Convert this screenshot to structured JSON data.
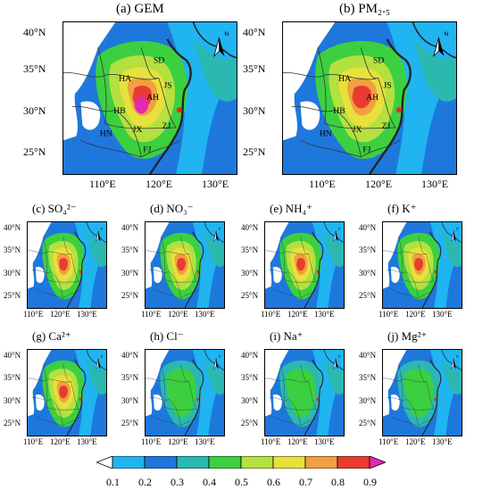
{
  "panels": [
    {
      "id": "a",
      "title": "(a) GEM",
      "size": "large"
    },
    {
      "id": "b",
      "title": "(b) PM₂.₅",
      "size": "large"
    },
    {
      "id": "c",
      "title": "(c) SO₄²⁻",
      "size": "small"
    },
    {
      "id": "d",
      "title": "(d) NO₃⁻",
      "size": "small"
    },
    {
      "id": "e",
      "title": "(e) NH₄⁺",
      "size": "small"
    },
    {
      "id": "f",
      "title": "(f) K⁺",
      "size": "small"
    },
    {
      "id": "g",
      "title": "(g) Ca²⁺",
      "size": "small"
    },
    {
      "id": "h",
      "title": "(h) Cl⁻",
      "size": "small"
    },
    {
      "id": "i",
      "title": "(i) Na⁺",
      "size": "small"
    },
    {
      "id": "j",
      "title": "(j) Mg²⁺",
      "size": "small"
    }
  ],
  "latitude_labels": [
    "40°N",
    "35°N",
    "30°N",
    "25°N"
  ],
  "longitude_labels": [
    "110°E",
    "120°E",
    "130°E"
  ],
  "province_labels": [
    "SD",
    "HA",
    "JS",
    "AH",
    "HB",
    "ZJ",
    "HN",
    "JX",
    "FJ"
  ],
  "north_arrow_label": "N",
  "colorbar": {
    "ticks": [
      "0.1",
      "0.2",
      "0.3",
      "0.4",
      "0.5",
      "0.6",
      "0.7",
      "0.8",
      "0.9"
    ],
    "colors": [
      "#ffffff",
      "#20b4f0",
      "#1e78dc",
      "#2ab8b0",
      "#3cd040",
      "#b4e040",
      "#e8e03c",
      "#f0a040",
      "#e83c30",
      "#e628b4"
    ]
  },
  "site_marker_color": "#e8281e"
}
